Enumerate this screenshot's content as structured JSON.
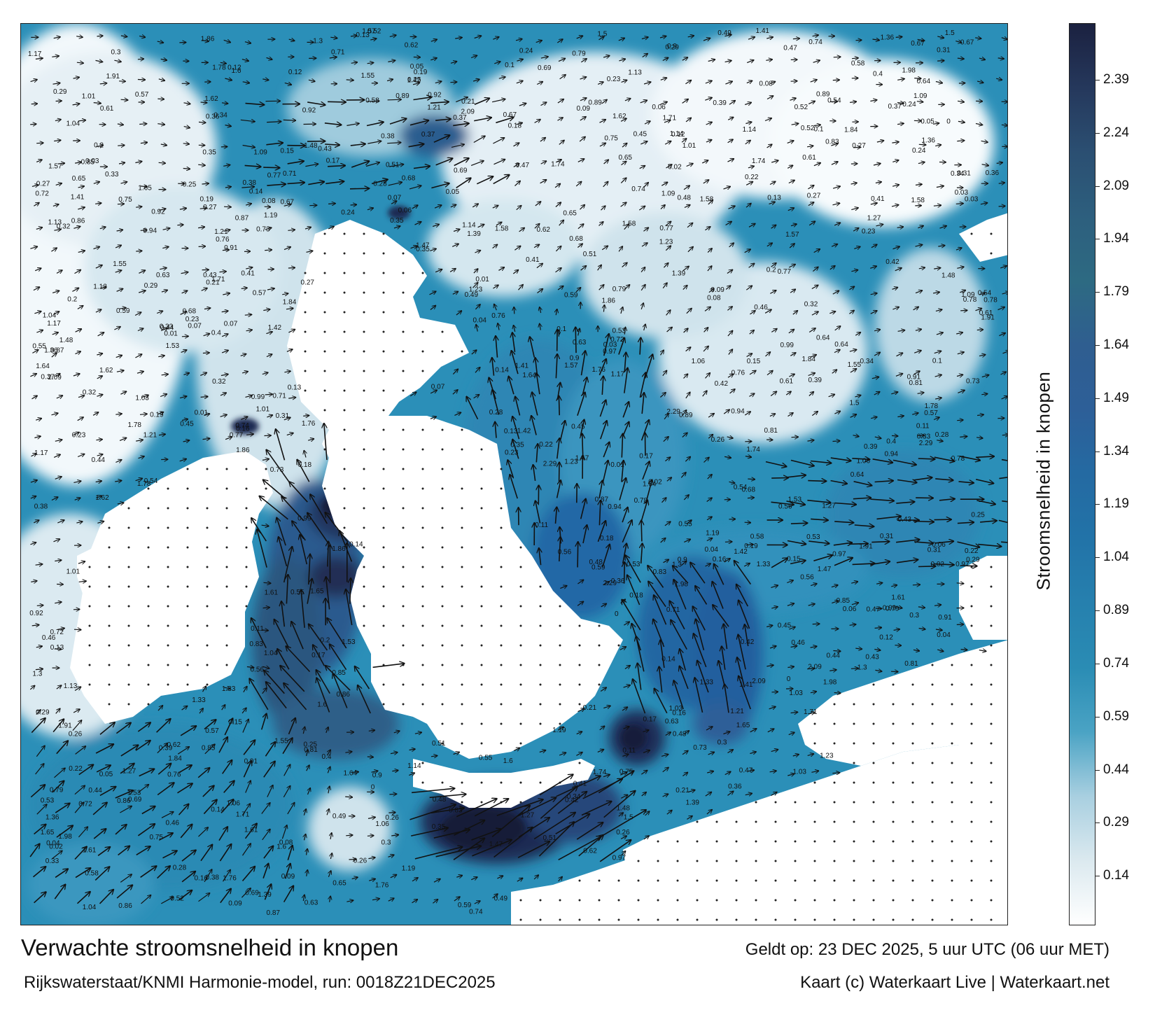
{
  "map": {
    "title": "Verwachte stroomsnelheid in knopen",
    "model_line": "Rijkswaterstaat/KNMI Harmonie-model, run: 0018Z21DEC2025",
    "valid_time": "Geldt op: 23 DEC 2025, 5 uur UTC (06 uur MET)",
    "credit": "Kaart (c) Waterkaart Live | Waterkaart.net",
    "colors": {
      "land": "#ffffff",
      "frame": "#222222",
      "arrow": "#111111"
    }
  },
  "colorbar": {
    "title": "Stroomsnelheid in knopen",
    "ticks": [
      "2.39",
      "2.24",
      "2.09",
      "1.94",
      "1.79",
      "1.64",
      "1.49",
      "1.34",
      "1.19",
      "1.04",
      "0.89",
      "0.74",
      "0.59",
      "0.44",
      "0.29",
      "0.14"
    ],
    "tick_values": [
      2.39,
      2.24,
      2.09,
      1.94,
      1.79,
      1.64,
      1.49,
      1.34,
      1.19,
      1.04,
      0.89,
      0.74,
      0.59,
      0.44,
      0.29,
      0.14
    ],
    "range": [
      0,
      2.55
    ],
    "colors": [
      "#ffffff",
      "#dbe9ef",
      "#a8cfe0",
      "#4aa3c4",
      "#2a8cb4",
      "#2680ae",
      "#2273a8",
      "#246aa2",
      "#2d5f98",
      "#2f5e90",
      "#2d6a82",
      "#2d5f7e",
      "#2b4f72",
      "#25385c",
      "#1b2140"
    ]
  },
  "speed_labels": [
    {
      "v": "0.35"
    },
    {
      "v": "0.31"
    },
    {
      "v": "0.26"
    },
    {
      "v": "0.27"
    },
    {
      "v": "0.13"
    },
    {
      "v": "0.29"
    },
    {
      "v": "0.23"
    },
    {
      "v": "0.14"
    },
    {
      "v": "0.12"
    },
    {
      "v": "0.2"
    },
    {
      "v": "0.16"
    },
    {
      "v": "0.19"
    },
    {
      "v": "0.1"
    },
    {
      "v": "0.11"
    },
    {
      "v": "0.07"
    },
    {
      "v": "0.09"
    },
    {
      "v": "0.06"
    },
    {
      "v": "0.33"
    },
    {
      "v": "0.41"
    },
    {
      "v": "0.52"
    },
    {
      "v": "0.68"
    },
    {
      "v": "0.67"
    },
    {
      "v": "0.71"
    },
    {
      "v": "0.59"
    },
    {
      "v": "0.64"
    },
    {
      "v": "0.85"
    },
    {
      "v": "0.53"
    },
    {
      "v": "0.78"
    },
    {
      "v": "1.06"
    },
    {
      "v": "0.86"
    },
    {
      "v": "0.46"
    },
    {
      "v": "0.24"
    },
    {
      "v": "0.43"
    },
    {
      "v": "0.28"
    },
    {
      "v": "0.22"
    },
    {
      "v": "0.3"
    },
    {
      "v": "0.15"
    },
    {
      "v": "0.17"
    },
    {
      "v": "0.18"
    },
    {
      "v": "0.21"
    },
    {
      "v": "0.45"
    },
    {
      "v": "0.44"
    },
    {
      "v": "0.65"
    },
    {
      "v": "0.73"
    },
    {
      "v": "0.79"
    },
    {
      "v": "0.74"
    },
    {
      "v": "0.89"
    },
    {
      "v": "1.14"
    },
    {
      "v": "1.19"
    },
    {
      "v": "1.04"
    },
    {
      "v": "1.27"
    },
    {
      "v": "1.13"
    },
    {
      "v": "1.41"
    },
    {
      "v": "1.53"
    },
    {
      "v": "1.36"
    },
    {
      "v": "1.58"
    },
    {
      "v": "1.64"
    },
    {
      "v": "1.84"
    },
    {
      "v": "1.62"
    },
    {
      "v": "1.74"
    },
    {
      "v": "1.65"
    },
    {
      "v": "1.78"
    },
    {
      "v": "1.61"
    },
    {
      "v": "2.29"
    },
    {
      "v": "2.09"
    },
    {
      "v": "1.86"
    },
    {
      "v": "1.55"
    },
    {
      "v": "1.47"
    },
    {
      "v": "1.03"
    },
    {
      "v": "0.97"
    },
    {
      "v": "0.94"
    },
    {
      "v": "0.92"
    },
    {
      "v": "0.91"
    },
    {
      "v": "0.81"
    },
    {
      "v": "0.77"
    },
    {
      "v": "0.76"
    },
    {
      "v": "0.62"
    },
    {
      "v": "0.58"
    },
    {
      "v": "0.56"
    },
    {
      "v": "0.54"
    },
    {
      "v": "0.51"
    },
    {
      "v": "0.49"
    },
    {
      "v": "0.48"
    },
    {
      "v": "0.47"
    },
    {
      "v": "0.42"
    },
    {
      "v": "0.39"
    },
    {
      "v": "0.37"
    },
    {
      "v": "0.36"
    },
    {
      "v": "0.34"
    },
    {
      "v": "0.32"
    },
    {
      "v": "0.25"
    },
    {
      "v": "0.08"
    },
    {
      "v": "0.05"
    },
    {
      "v": "0.04"
    },
    {
      "v": "0.03"
    },
    {
      "v": "0.02"
    },
    {
      "v": "0.01"
    },
    {
      "v": "0"
    },
    {
      "v": "0.63"
    },
    {
      "v": "0.55"
    },
    {
      "v": "0.57"
    },
    {
      "v": "0.61"
    },
    {
      "v": "0.69"
    },
    {
      "v": "0.72"
    },
    {
      "v": "0.75"
    },
    {
      "v": "0.83"
    },
    {
      "v": "0.87"
    },
    {
      "v": "0.9"
    },
    {
      "v": "0.99"
    },
    {
      "v": "1.01"
    },
    {
      "v": "1.09"
    },
    {
      "v": "1.17"
    },
    {
      "v": "1.21"
    },
    {
      "v": "1.23"
    },
    {
      "v": "1.3"
    },
    {
      "v": "1.33"
    },
    {
      "v": "1.39"
    },
    {
      "v": "1.42"
    },
    {
      "v": "1.48"
    },
    {
      "v": "1.5"
    },
    {
      "v": "1.57"
    },
    {
      "v": "1.6"
    },
    {
      "v": "1.71"
    },
    {
      "v": "1.76"
    },
    {
      "v": "1.91"
    },
    {
      "v": "1.98"
    },
    {
      "v": "0.4"
    },
    {
      "v": "0.38"
    }
  ]
}
